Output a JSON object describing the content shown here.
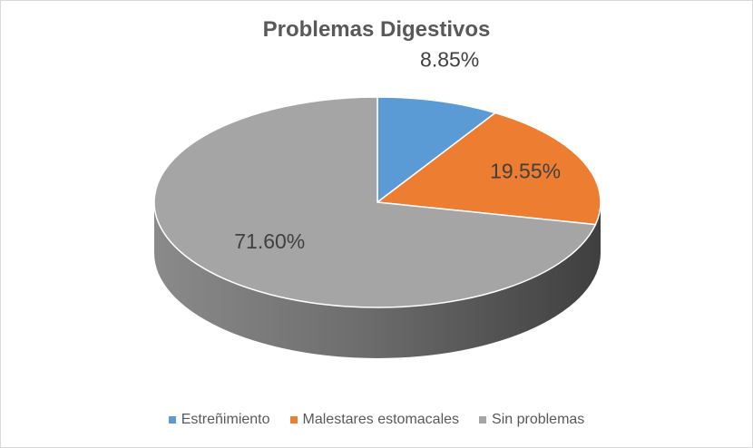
{
  "chart_data": {
    "type": "pie",
    "title": "Problemas Digestivos",
    "categories": [
      "Estreñimiento",
      "Malestares estomacales",
      "Sin problemas"
    ],
    "values": [
      8.85,
      19.55,
      71.6
    ],
    "data_labels": [
      "8.85%",
      "19.55%",
      "71.60%"
    ],
    "colors": [
      "#5B9BD5",
      "#ED7D31",
      "#A5A5A5"
    ],
    "style": "3d",
    "legend_position": "bottom"
  }
}
